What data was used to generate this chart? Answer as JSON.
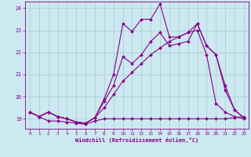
{
  "xlabel": "Windchill (Refroidissement éolien,°C)",
  "background_color": "#cce8f0",
  "line_color": "#880088",
  "grid_color": "#aacccc",
  "xlim": [
    -0.5,
    23.5
  ],
  "ylim": [
    18.55,
    24.3
  ],
  "yticks": [
    19,
    20,
    21,
    22,
    23,
    24
  ],
  "xticks": [
    0,
    1,
    2,
    3,
    4,
    5,
    6,
    7,
    8,
    9,
    10,
    11,
    12,
    13,
    14,
    15,
    16,
    17,
    18,
    19,
    20,
    21,
    22,
    23
  ],
  "s1_x": [
    0,
    1,
    2,
    3,
    4,
    5,
    6,
    7,
    8,
    9,
    10,
    11,
    12,
    13,
    14,
    15,
    16,
    17,
    18,
    19,
    20,
    21,
    22,
    23
  ],
  "s1_y": [
    19.3,
    19.1,
    18.9,
    18.9,
    18.85,
    18.8,
    18.75,
    18.9,
    19.0,
    19.0,
    19.0,
    19.0,
    19.0,
    19.0,
    19.0,
    19.0,
    19.0,
    19.0,
    19.0,
    19.0,
    19.0,
    19.0,
    19.05,
    19.1
  ],
  "s2_x": [
    0,
    1,
    2,
    3,
    4,
    5,
    6,
    7,
    8,
    9,
    10,
    11,
    12,
    13,
    14,
    15,
    16,
    17,
    18,
    19,
    20,
    21,
    22,
    23
  ],
  "s2_y": [
    19.3,
    19.1,
    19.3,
    19.1,
    19.0,
    18.85,
    18.8,
    19.05,
    19.5,
    20.1,
    20.7,
    21.1,
    21.5,
    21.9,
    22.2,
    22.5,
    22.7,
    22.9,
    23.0,
    21.9,
    19.7,
    19.3,
    19.1,
    19.0
  ],
  "s3_x": [
    0,
    1,
    2,
    3,
    4,
    5,
    6,
    7,
    8,
    9,
    10,
    11,
    12,
    13,
    14,
    15,
    16,
    17,
    18,
    19,
    20,
    21,
    22,
    23
  ],
  "s3_y": [
    19.3,
    19.1,
    19.3,
    19.1,
    19.0,
    18.85,
    18.8,
    19.05,
    19.8,
    20.5,
    21.8,
    21.5,
    21.9,
    22.5,
    22.9,
    22.3,
    22.4,
    22.5,
    23.3,
    22.3,
    21.9,
    20.5,
    19.4,
    19.05
  ],
  "s4_x": [
    0,
    1,
    2,
    3,
    4,
    5,
    6,
    7,
    8,
    9,
    10,
    11,
    12,
    13,
    14,
    15,
    16,
    17,
    18,
    19,
    20,
    21,
    22,
    23
  ],
  "s4_y": [
    19.3,
    19.1,
    19.3,
    19.1,
    19.0,
    18.85,
    18.8,
    19.05,
    19.9,
    21.0,
    23.3,
    22.95,
    23.5,
    23.5,
    24.2,
    22.7,
    22.7,
    22.9,
    23.3,
    22.3,
    21.9,
    20.3,
    19.4,
    19.05
  ]
}
